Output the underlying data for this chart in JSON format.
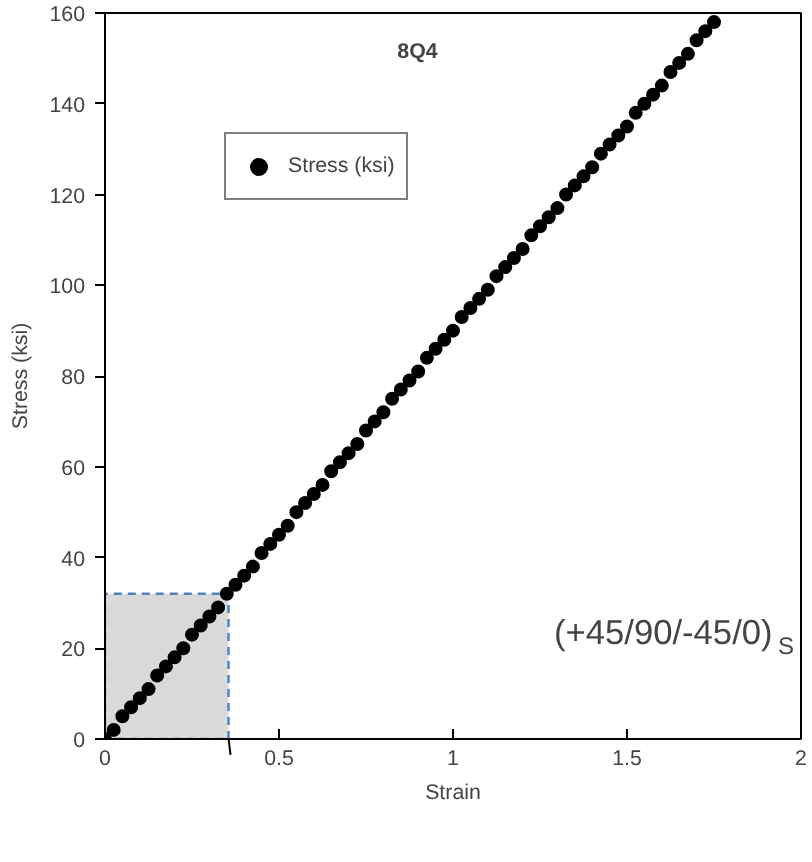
{
  "chart_data": {
    "type": "scatter",
    "title": "8Q4",
    "xlabel": "Strain",
    "ylabel": "Stress (ksi)",
    "x": [
      0,
      0.025,
      0.05,
      0.075,
      0.1,
      0.125,
      0.15,
      0.175,
      0.2,
      0.225,
      0.25,
      0.275,
      0.3,
      0.325,
      0.35,
      0.375,
      0.4,
      0.425,
      0.45,
      0.475,
      0.5,
      0.525,
      0.55,
      0.575,
      0.6,
      0.625,
      0.65,
      0.675,
      0.7,
      0.725,
      0.75,
      0.775,
      0.8,
      0.825,
      0.85,
      0.875,
      0.9,
      0.925,
      0.95,
      0.975,
      1.0,
      1.025,
      1.05,
      1.075,
      1.1,
      1.125,
      1.15,
      1.175,
      1.2,
      1.225,
      1.25,
      1.275,
      1.3,
      1.325,
      1.35,
      1.375,
      1.4,
      1.425,
      1.45,
      1.475,
      1.5,
      1.525,
      1.55,
      1.575,
      1.6,
      1.625,
      1.65,
      1.675,
      1.7,
      1.725,
      1.75
    ],
    "series": [
      {
        "name": "Stress (ksi)",
        "color": "#000000",
        "values": [
          0,
          2,
          5,
          7,
          9,
          11,
          14,
          16,
          18,
          20,
          23,
          25,
          27,
          29,
          32,
          34,
          36,
          38,
          41,
          43,
          45,
          47,
          50,
          52,
          54,
          56,
          59,
          61,
          63,
          65,
          68,
          70,
          72,
          75,
          77,
          79,
          81,
          84,
          86,
          88,
          90,
          93,
          95,
          97,
          99,
          102,
          104,
          106,
          108,
          111,
          113,
          115,
          117,
          120,
          122,
          124,
          126,
          129,
          131,
          133,
          135,
          138,
          140,
          142,
          144,
          147,
          149,
          151,
          154,
          156,
          158
        ]
      },
      {
        "type": "area",
        "color": "#d9d9d9",
        "line_style": "dashed",
        "marker": "none",
        "x": [
          0,
          0.355
        ],
        "values": [
          32,
          32
        ]
      }
    ],
    "marker": "circle",
    "legend": "top left",
    "grid": false,
    "xlim": [
      0,
      2
    ],
    "xticks": [
      0,
      0.5,
      1,
      1.5,
      2
    ],
    "ylim": [
      0,
      160
    ],
    "yticks": [
      0,
      20,
      40,
      60,
      80,
      100,
      120,
      140,
      160
    ],
    "annotations": [
      "(+45/90/-45/0)$_{S}$"
    ]
  }
}
